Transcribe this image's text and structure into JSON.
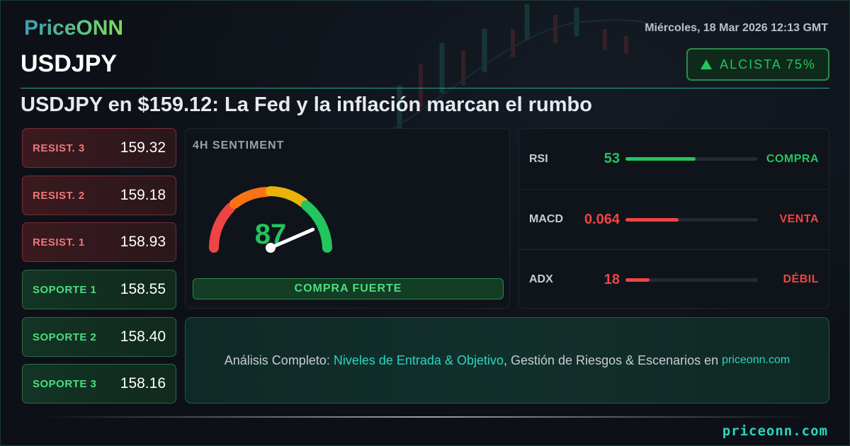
{
  "brand": {
    "logo": "PriceONN",
    "footer_site": "priceonn.com"
  },
  "header": {
    "symbol": "USDJPY",
    "date": "Miércoles, 18 Mar 2026 12:13 GMT",
    "bias_icon": "triangle-up-icon",
    "bias": "ALCISTA 75%",
    "headline": "USDJPY en $159.12: La Fed y la inflación marcan el rumbo"
  },
  "levels": [
    {
      "label": "RESIST. 3",
      "value": "159.32",
      "type": "resistance"
    },
    {
      "label": "RESIST. 2",
      "value": "159.18",
      "type": "resistance"
    },
    {
      "label": "RESIST. 1",
      "value": "158.93",
      "type": "resistance"
    },
    {
      "label": "SOPORTE 1",
      "value": "158.55",
      "type": "support"
    },
    {
      "label": "SOPORTE 2",
      "value": "158.40",
      "type": "support"
    },
    {
      "label": "SOPORTE 3",
      "value": "158.16",
      "type": "support"
    }
  ],
  "sentiment": {
    "title": "4H SENTIMENT",
    "value": "87",
    "score": 87,
    "signal": "COMPRA FUERTE"
  },
  "indicators": [
    {
      "name": "RSI",
      "value": "53",
      "signal": "COMPRA",
      "fill_pct": 53,
      "color": "#22c55e"
    },
    {
      "name": "MACD",
      "value": "0.064",
      "signal": "VENTA",
      "fill_pct": 40,
      "color": "#ef4444"
    },
    {
      "name": "ADX",
      "value": "18",
      "signal": "DÉBIL",
      "fill_pct": 18,
      "color": "#ef4444"
    }
  ],
  "cta": {
    "prefix": "Análisis Completo: ",
    "highlight": "Niveles de Entrada & Objetivo",
    "middle": ", Gestión de Riesgos & Escenarios en ",
    "site": "priceonn.com"
  },
  "colors": {
    "bullish": "#22c55e",
    "bearish": "#ef4444",
    "accent": "#2dd4bf"
  }
}
